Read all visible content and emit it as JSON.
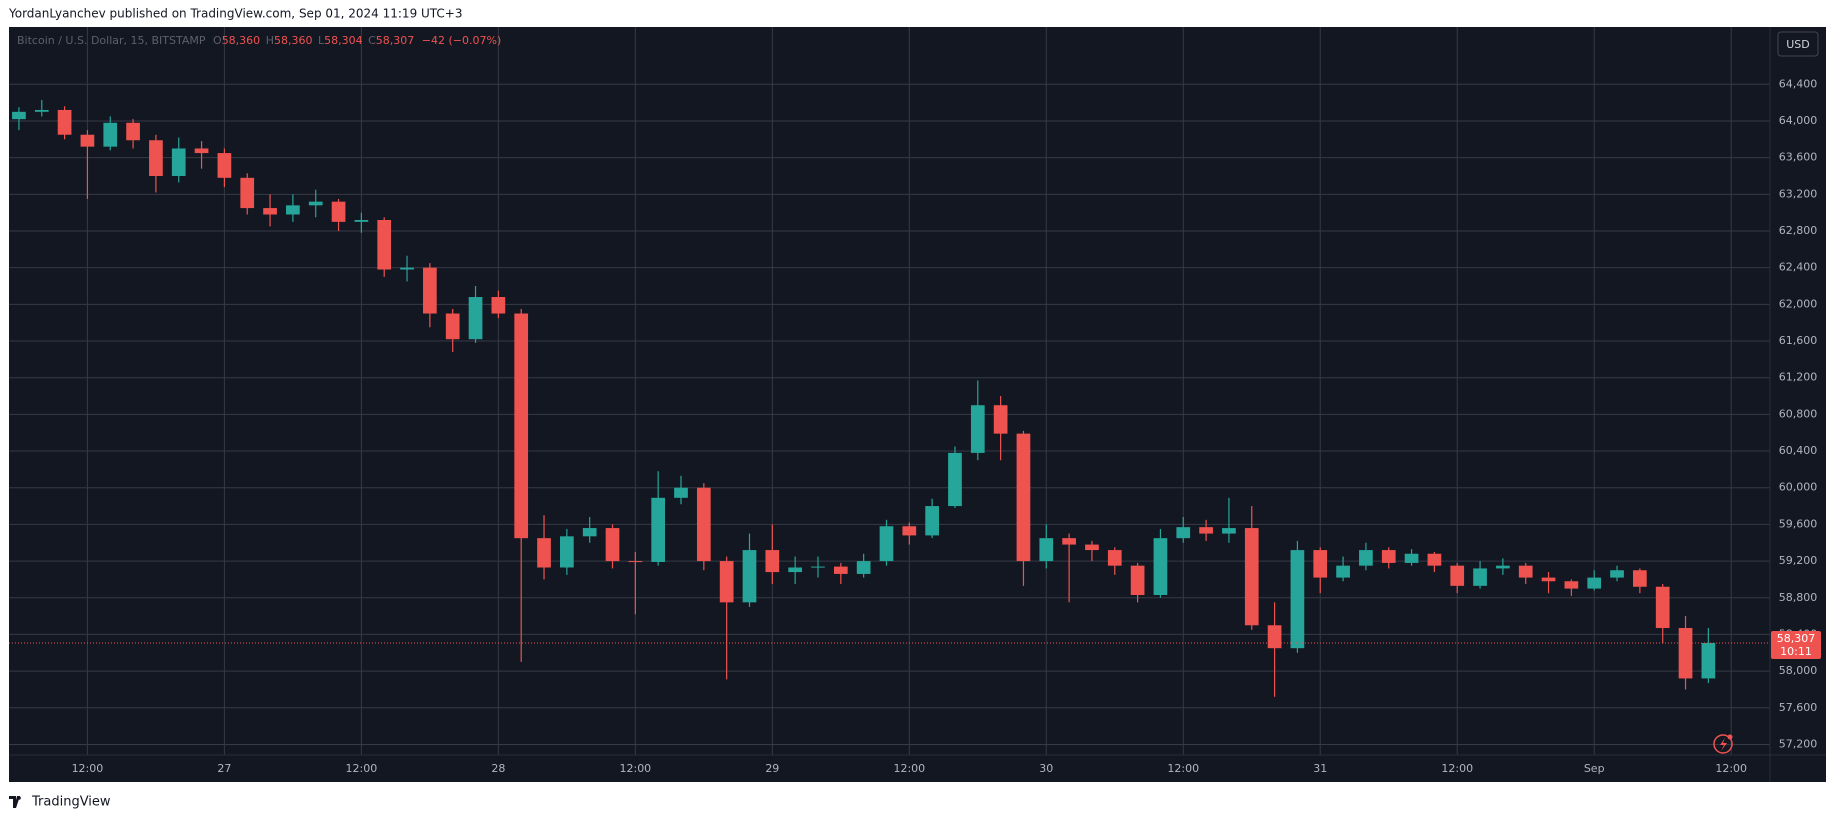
{
  "header": {
    "text": "YordanLyanchev published on TradingView.com, Sep 01, 2024 11:19 UTC+3"
  },
  "footer": {
    "brand": "TradingView"
  },
  "chart_data": {
    "type": "candlestick",
    "legend": {
      "symbol": "Bitcoin / U.S. Dollar, 15, BITSTAMP",
      "o_label": "O",
      "o": "58,360",
      "h_label": "H",
      "h": "58,360",
      "l_label": "L",
      "l": "58,304",
      "c_label": "C",
      "c": "58,307",
      "change": "−42 (−0.07%)"
    },
    "currency": "USD",
    "x": [
      6,
      8,
      10,
      12,
      14,
      16,
      18,
      20,
      22,
      24,
      26,
      28,
      30,
      32,
      34,
      36,
      38,
      40,
      42,
      44,
      46,
      48,
      50,
      52,
      54,
      56,
      58,
      60,
      62,
      64,
      66,
      68,
      70,
      72,
      74,
      76,
      78,
      80,
      82,
      84,
      86,
      88,
      90,
      92,
      94,
      96,
      98,
      100,
      102,
      104,
      106,
      108,
      110,
      112,
      114,
      116,
      118,
      120,
      122,
      124,
      126,
      128,
      130,
      132,
      134,
      136,
      138,
      140,
      142,
      144,
      146,
      148,
      150,
      152,
      154
    ],
    "open": [
      64020,
      64100,
      64120,
      63850,
      63720,
      63980,
      63790,
      63400,
      63700,
      63650,
      63380,
      63050,
      62980,
      63080,
      63120,
      62900,
      62920,
      62380,
      62400,
      61900,
      61620,
      62080,
      61900,
      59450,
      59130,
      59470,
      59560,
      59200,
      59190,
      59890,
      60000,
      59200,
      58750,
      59320,
      59080,
      59130,
      59140,
      59060,
      59200,
      59580,
      59480,
      59800,
      60380,
      60900,
      60590,
      59200,
      59450,
      59380,
      59320,
      59150,
      58830,
      59450,
      59570,
      59500,
      59560,
      58500,
      58250,
      59320,
      59020,
      59150,
      59320,
      59180,
      59280,
      59150,
      58930,
      59120,
      59150,
      59020,
      58980,
      58900,
      59020,
      59100,
      58920,
      58470,
      57920
    ],
    "high": [
      64150,
      64230,
      64160,
      63900,
      64050,
      64020,
      63850,
      63820,
      63780,
      63700,
      63430,
      63200,
      63200,
      63250,
      63150,
      63000,
      62950,
      62530,
      62450,
      61950,
      62200,
      62150,
      61950,
      59700,
      59550,
      59680,
      59600,
      59300,
      60180,
      60130,
      60050,
      59250,
      59500,
      59600,
      59250,
      59250,
      59180,
      59280,
      59650,
      59620,
      59880,
      60450,
      61170,
      61000,
      60620,
      59600,
      59500,
      59420,
      59350,
      59180,
      59550,
      59680,
      59650,
      59890,
      59800,
      58750,
      59420,
      59350,
      59250,
      59400,
      59350,
      59330,
      59300,
      59180,
      59200,
      59230,
      59180,
      59080,
      59000,
      59100,
      59150,
      59120,
      58950,
      58600,
      58470
    ],
    "low": [
      63900,
      64050,
      63800,
      63150,
      63680,
      63700,
      63220,
      63330,
      63480,
      63280,
      62980,
      62850,
      62900,
      62950,
      62800,
      62780,
      62300,
      62250,
      61750,
      61480,
      61580,
      61850,
      58100,
      59000,
      59050,
      59400,
      59120,
      58620,
      59150,
      59820,
      59100,
      57910,
      58700,
      58950,
      58950,
      59020,
      58950,
      59020,
      59150,
      59380,
      59450,
      59780,
      60300,
      60300,
      58930,
      59120,
      58750,
      59200,
      59050,
      58750,
      58800,
      59400,
      59420,
      59400,
      58450,
      57720,
      58200,
      58850,
      58980,
      59100,
      59120,
      59150,
      59080,
      58850,
      58900,
      59050,
      58950,
      58850,
      58820,
      58880,
      58980,
      58850,
      58300,
      57800,
      57870
    ],
    "close": [
      64100,
      64120,
      63850,
      63720,
      63980,
      63790,
      63400,
      63700,
      63650,
      63380,
      63050,
      62980,
      63080,
      63120,
      62900,
      62920,
      62380,
      62400,
      61900,
      61620,
      62080,
      61900,
      59450,
      59130,
      59470,
      59560,
      59200,
      59190,
      59890,
      60000,
      59200,
      58750,
      59320,
      59080,
      59130,
      59140,
      59060,
      59200,
      59580,
      59480,
      59800,
      60380,
      60900,
      60590,
      59200,
      59450,
      59380,
      59320,
      59150,
      58830,
      59450,
      59570,
      59500,
      59560,
      58500,
      58250,
      59320,
      59020,
      59150,
      59320,
      59180,
      59280,
      59150,
      58930,
      59120,
      59150,
      59020,
      58980,
      58900,
      59020,
      59100,
      58920,
      58470,
      57920,
      58307
    ],
    "up_color": "#26a69a",
    "down_color": "#ef5350",
    "xlim": [
      5.13,
      159.4
    ],
    "ylim": [
      57085,
      65025
    ],
    "xticks": [
      {
        "value": 12,
        "label": "12:00"
      },
      {
        "value": 24,
        "label": "27"
      },
      {
        "value": 36,
        "label": "12:00"
      },
      {
        "value": 48,
        "label": "28"
      },
      {
        "value": 60,
        "label": "12:00"
      },
      {
        "value": 72,
        "label": "29"
      },
      {
        "value": 84,
        "label": "12:00"
      },
      {
        "value": 96,
        "label": "30"
      },
      {
        "value": 108,
        "label": "12:00"
      },
      {
        "value": 120,
        "label": "31"
      },
      {
        "value": 132,
        "label": "12:00"
      },
      {
        "value": 144,
        "label": "Sep"
      },
      {
        "value": 156,
        "label": "12:00"
      }
    ],
    "yticks": [
      {
        "value": 57200,
        "label": "57,200"
      },
      {
        "value": 57600,
        "label": "57,600"
      },
      {
        "value": 58000,
        "label": "58,000"
      },
      {
        "value": 58400,
        "label": "58,400"
      },
      {
        "value": 58800,
        "label": "58,800"
      },
      {
        "value": 59200,
        "label": "59,200"
      },
      {
        "value": 59600,
        "label": "59,600"
      },
      {
        "value": 60000,
        "label": "60,000"
      },
      {
        "value": 60400,
        "label": "60,400"
      },
      {
        "value": 60800,
        "label": "60,800"
      },
      {
        "value": 61200,
        "label": "61,200"
      },
      {
        "value": 61600,
        "label": "61,600"
      },
      {
        "value": 62000,
        "label": "62,000"
      },
      {
        "value": 62400,
        "label": "62,400"
      },
      {
        "value": 62800,
        "label": "62,800"
      },
      {
        "value": 63200,
        "label": "63,200"
      },
      {
        "value": 63600,
        "label": "63,600"
      },
      {
        "value": 64000,
        "label": "64,000"
      },
      {
        "value": 64400,
        "label": "64,400"
      }
    ],
    "grid": true,
    "last_price": {
      "value": 58307,
      "label": "58,307"
    },
    "countdown": "10:11"
  }
}
